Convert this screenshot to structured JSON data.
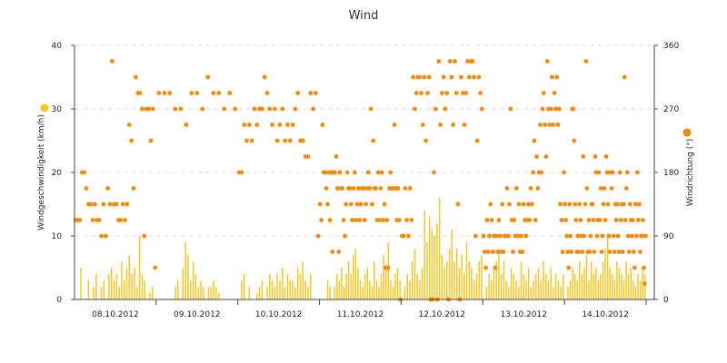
{
  "chart_data": {
    "type": "bar+scatter",
    "title": "Wind",
    "y_left": {
      "label": "Windgeschwindigkeit (km/h)",
      "ylim": [
        0,
        40
      ],
      "ticks": [
        0,
        10,
        20,
        30,
        40
      ]
    },
    "y_right": {
      "label": "Windrichtung (°)",
      "ylim": [
        0,
        360
      ],
      "ticks": [
        0,
        90,
        180,
        270,
        360
      ]
    },
    "x": {
      "range": [
        0,
        7.1
      ],
      "tick_labels": [
        "08.10.2012",
        "09.10.2012",
        "10.10.2012",
        "11.10.2012",
        "12.10.2012",
        "13.10.2012",
        "14.10.2012"
      ],
      "tick_positions": [
        0.5,
        1.5,
        2.5,
        3.5,
        4.5,
        5.5,
        6.5
      ],
      "day_separators": [
        1,
        2,
        3,
        4,
        5,
        6,
        7
      ]
    },
    "grid": true,
    "colors": {
      "speed": "#f9c623",
      "direction": "#f58a0b",
      "grid": "#dcdcdc",
      "axis": "#444444"
    },
    "series": [
      {
        "axis": "left",
        "style": "bars",
        "values_by_day": [
          [
            0,
            0,
            5,
            0,
            0,
            3,
            0,
            2,
            4,
            0,
            2,
            3,
            0,
            4,
            5,
            3,
            4,
            2,
            6,
            3,
            5,
            7,
            4,
            5,
            2,
            10,
            4,
            3,
            0,
            1,
            2,
            0
          ],
          [
            0,
            0,
            0,
            0,
            0,
            0,
            0,
            2,
            3,
            0,
            5,
            9,
            7,
            3,
            6,
            4,
            2,
            3,
            2,
            0,
            2,
            2,
            3,
            2,
            1,
            0,
            0,
            0,
            0,
            0,
            0,
            0
          ],
          [
            0,
            3,
            4,
            0,
            2,
            0,
            0,
            1,
            2,
            3,
            0,
            2,
            4,
            3,
            2,
            4,
            3,
            5,
            2,
            4,
            3,
            3,
            2,
            5,
            4,
            6,
            3,
            2,
            4,
            0,
            0,
            0
          ],
          [
            0,
            0,
            0,
            3,
            2,
            0,
            2,
            4,
            3,
            5,
            2,
            4,
            6,
            4,
            7,
            8,
            5,
            3,
            2,
            4,
            5,
            3,
            2,
            6,
            3,
            2,
            4,
            7,
            5,
            9,
            3,
            2,
            4,
            5,
            3
          ],
          [
            0,
            2,
            4,
            3,
            6,
            8,
            4,
            3,
            5,
            14,
            9,
            13,
            11,
            10,
            12,
            16,
            7,
            5,
            6,
            8,
            11,
            6,
            8,
            5,
            7,
            4,
            9,
            6,
            5,
            3,
            4,
            6,
            7
          ],
          [
            0,
            2,
            4,
            3,
            5,
            6,
            8,
            4,
            6,
            3,
            2,
            5,
            4,
            3,
            2,
            6,
            4,
            3,
            5,
            2,
            3,
            4,
            5,
            3,
            6,
            4,
            3,
            5,
            2,
            4,
            3,
            2,
            4
          ],
          [
            0,
            2,
            3,
            5,
            4,
            3,
            6,
            4,
            5,
            7,
            3,
            6,
            4,
            5,
            3,
            4,
            6,
            8,
            10,
            5,
            4,
            3,
            6,
            5,
            4,
            3,
            6,
            4,
            5,
            3,
            2,
            4,
            3,
            5,
            4
          ]
        ]
      },
      {
        "axis": "right",
        "style": "scatter",
        "values_by_day": [
          [
            112.5,
            112.5,
            112.5,
            180,
            180,
            157.5,
            135,
            135,
            112.5,
            135,
            112.5,
            112.5,
            90,
            135,
            90,
            157.5,
            135,
            337.5,
            135,
            135,
            112.5,
            112.5,
            135,
            112.5,
            135,
            247.5,
            225,
            157.5,
            315,
            292.5,
            292.5,
            270,
            90,
            270,
            270,
            225,
            270,
            45
          ],
          [
            292.5,
            292.5,
            292.5,
            270,
            270,
            247.5,
            292.5,
            292.5,
            270,
            315,
            292.5,
            292.5,
            270,
            292.5,
            270
          ],
          [
            180,
            180,
            247.5,
            225,
            247.5,
            225,
            270,
            247.5,
            270,
            270,
            315,
            292.5,
            270,
            247.5,
            270,
            225,
            247.5,
            270,
            225,
            247.5,
            225,
            247.5,
            270,
            292.5,
            225,
            225,
            202.5,
            202.5,
            292.5,
            270,
            292.5,
            90
          ],
          [
            135,
            112.5,
            247.5,
            180,
            180,
            157.5,
            135,
            180,
            112.5,
            180,
            67.5,
            180,
            180,
            202.5,
            157.5,
            67.5,
            180,
            157.5,
            157.5,
            112.5,
            90,
            135,
            180,
            157.5,
            157.5,
            135,
            112.5,
            157.5,
            180,
            112.5,
            135,
            157.5,
            112.5,
            135,
            157.5,
            157.5,
            112.5,
            135,
            157.5,
            180,
            157.5,
            270,
            135,
            225,
            157.5,
            157.5,
            112.5,
            180,
            112.5,
            157.5,
            180,
            112.5,
            135,
            45,
            112.5,
            45,
            157.5,
            180,
            157.5,
            157.5,
            247.5,
            157.5,
            112.5,
            157.5,
            112.5,
            0
          ],
          [
            90,
            90,
            157.5,
            112.5,
            90,
            157.5,
            112.5,
            315,
            270,
            292.5,
            315,
            315,
            292.5,
            247.5,
            315,
            225,
            292.5,
            315,
            0,
            0,
            180,
            270,
            0,
            337.5,
            247.5,
            292.5,
            315,
            270,
            292.5,
            0,
            337.5,
            315,
            247.5,
            337.5,
            292.5,
            135,
            0,
            315,
            292.5,
            247.5,
            292.5,
            337.5,
            315,
            337.5,
            337.5,
            315,
            90,
            225,
            315,
            292.5,
            270
          ],
          [
            90,
            67.5,
            45,
            112.5,
            67.5,
            90,
            135,
            112.5,
            67.5,
            90,
            45,
            90,
            67.5,
            112.5,
            90,
            67.5,
            135,
            67.5,
            90,
            90,
            157.5,
            90,
            135,
            270,
            112.5,
            67.5,
            112.5,
            90,
            157.5,
            90,
            135,
            67.5,
            90,
            67.5,
            135,
            112.5,
            90,
            112.5,
            135,
            112.5,
            157.5,
            135,
            180,
            225,
            112.5,
            202.5,
            157.5,
            180,
            247.5,
            180,
            270,
            292.5,
            247.5,
            202.5,
            337.5,
            270,
            247.5,
            270,
            315,
            247.5,
            292.5,
            270,
            315,
            247.5,
            270,
            135,
            112.5,
            67.5,
            180
          ],
          [
            135,
            112.5,
            90,
            67.5,
            45,
            135,
            90,
            67.5,
            270,
            270,
            225,
            135,
            112.5,
            67.5,
            90,
            67.5,
            135,
            112.5,
            90,
            67.5,
            202.5,
            90,
            135,
            337.5,
            157.5,
            67.5,
            112.5,
            67.5,
            90,
            135,
            135,
            112.5,
            67.5,
            202.5,
            180,
            90,
            112.5,
            180,
            112.5,
            157.5,
            67.5,
            90,
            135,
            157.5,
            112.5,
            202.5,
            180,
            135,
            90,
            67.5,
            180,
            157.5,
            180,
            90,
            67.5,
            135,
            112.5,
            135,
            90,
            67.5,
            180,
            112.5,
            135,
            67.5,
            135,
            315,
            112.5,
            157.5,
            180,
            90,
            67.5,
            135,
            112.5,
            90,
            112.5,
            67.5,
            45,
            135,
            90,
            180,
            112.5,
            135,
            67.5,
            90,
            90,
            112.5,
            45,
            22.5,
            90
          ]
        ]
      }
    ]
  }
}
